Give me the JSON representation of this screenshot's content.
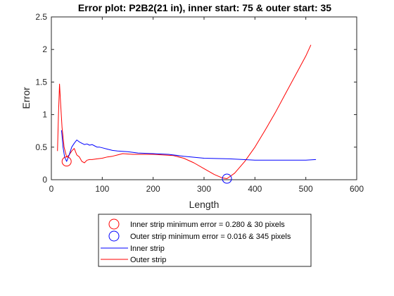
{
  "chart_data": {
    "type": "line",
    "title": "Error plot: P2B2(21 in), inner start: 75 & outer start: 35",
    "xlabel": "Length",
    "ylabel": "Error",
    "xlim": [
      0,
      600
    ],
    "ylim": [
      0,
      2.5
    ],
    "xticks": [
      0,
      100,
      200,
      300,
      400,
      500,
      600
    ],
    "yticks": [
      0,
      0.5,
      1,
      1.5,
      2,
      2.5
    ],
    "xtick_labels": [
      "0",
      "100",
      "200",
      "300",
      "400",
      "500",
      "600"
    ],
    "ytick_labels": [
      "0",
      "0.5",
      "1",
      "1.5",
      "2",
      "2.5"
    ],
    "grid": false,
    "legend_placement": "below-axes",
    "series": [
      {
        "name": "Inner strip",
        "color": "#0000ff",
        "x": [
          20,
          23,
          26,
          30,
          35,
          40,
          45,
          50,
          55,
          60,
          65,
          70,
          75,
          80,
          85,
          90,
          95,
          100,
          110,
          120,
          130,
          150,
          170,
          200,
          230,
          260,
          300,
          350,
          400,
          450,
          500,
          520
        ],
        "y": [
          0.76,
          0.5,
          0.35,
          0.28,
          0.38,
          0.5,
          0.56,
          0.61,
          0.58,
          0.56,
          0.54,
          0.55,
          0.53,
          0.54,
          0.52,
          0.5,
          0.5,
          0.49,
          0.47,
          0.45,
          0.44,
          0.43,
          0.41,
          0.4,
          0.39,
          0.36,
          0.33,
          0.32,
          0.3,
          0.3,
          0.3,
          0.31
        ]
      },
      {
        "name": "Outer strip",
        "color": "#ff0000",
        "x": [
          12,
          14,
          16,
          18,
          21,
          25,
          30,
          35,
          40,
          45,
          50,
          55,
          60,
          65,
          70,
          75,
          80,
          90,
          100,
          110,
          120,
          130,
          140,
          160,
          180,
          200,
          220,
          240,
          260,
          280,
          300,
          320,
          335,
          345,
          360,
          380,
          400,
          420,
          440,
          460,
          480,
          500,
          510
        ],
        "y": [
          0.44,
          1.0,
          1.47,
          1.2,
          0.8,
          0.5,
          0.35,
          0.38,
          0.44,
          0.48,
          0.38,
          0.35,
          0.28,
          0.26,
          0.3,
          0.31,
          0.31,
          0.32,
          0.33,
          0.35,
          0.36,
          0.38,
          0.4,
          0.39,
          0.39,
          0.39,
          0.38,
          0.37,
          0.33,
          0.26,
          0.17,
          0.08,
          0.03,
          0.016,
          0.1,
          0.28,
          0.5,
          0.76,
          1.03,
          1.32,
          1.61,
          1.9,
          2.07
        ]
      }
    ],
    "markers": [
      {
        "label": "Inner strip minimum error = 0.280 & 30 pixels",
        "x": 30,
        "y": 0.28,
        "color": "#ff0000"
      },
      {
        "label": "Outer strip minimum error  = 0.016 & 345 pixels",
        "x": 345,
        "y": 0.016,
        "color": "#0000ff"
      }
    ]
  }
}
